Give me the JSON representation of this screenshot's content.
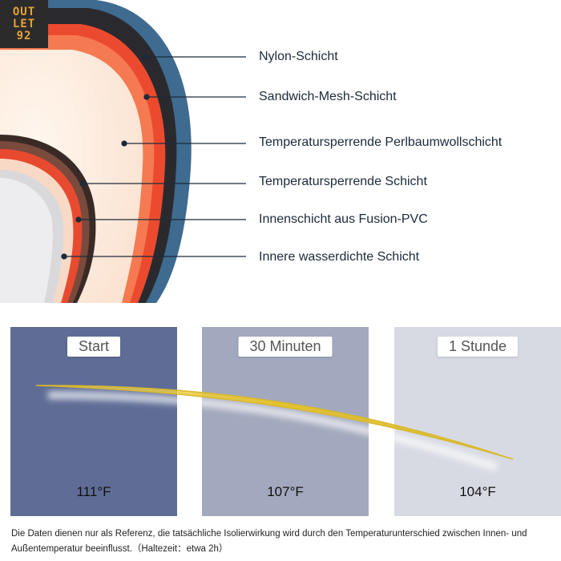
{
  "logo": {
    "line1": "OUT",
    "line2": "LET",
    "line3": "92"
  },
  "layers": [
    {
      "label": "Nylon-Schicht"
    },
    {
      "label": "Sandwich-Mesh-Schicht"
    },
    {
      "label": "Temperatursperrende Perlbaumwollschicht"
    },
    {
      "label": "Temperatursperrende Schicht"
    },
    {
      "label": "Innenschicht aus Fusion-PVC"
    },
    {
      "label": "Innere wasserdichte Schicht"
    }
  ],
  "panels": [
    {
      "label": "Start",
      "temperature": "111°F",
      "color": "#5f6d96"
    },
    {
      "label": "30 Minuten",
      "temperature": "107°F",
      "color": "#a2a8bd"
    },
    {
      "label": "1 Stunde",
      "temperature": "104°F",
      "color": "#d7dae3"
    }
  ],
  "colors": {
    "accent_curve": "#e2c43a",
    "outer_shell": "#3d6a8e",
    "mesh": "#ef5a3a"
  },
  "footnote": "Die Daten dienen nur als Referenz, die tatsächliche Isolierwirkung wird durch den Temperaturunterschied zwischen Innen- und Außentemperatur beeinflusst.（Haltezeit：etwa 2h）"
}
